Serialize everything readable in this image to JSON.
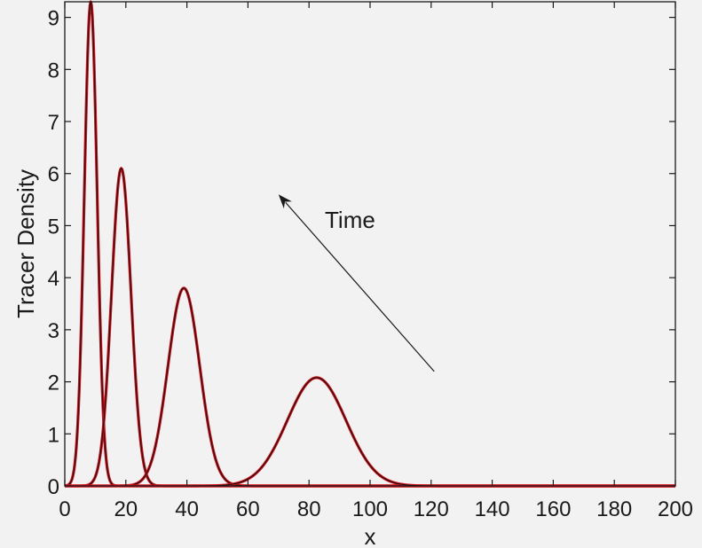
{
  "chart_data": {
    "type": "line",
    "title": "",
    "xlabel": "x",
    "ylabel": "Tracer Density",
    "xlim": [
      0,
      200
    ],
    "ylim": [
      0,
      9.3
    ],
    "xticks": [
      0,
      20,
      40,
      60,
      80,
      100,
      120,
      140,
      160,
      180,
      200
    ],
    "yticks": [
      0,
      1,
      2,
      3,
      4,
      5,
      6,
      7,
      8,
      9
    ],
    "grid": false,
    "legend": "none",
    "series": [
      {
        "peak_x": 8.5,
        "peak_y": 9.3,
        "sigma": 2.1
      },
      {
        "peak_x": 18.5,
        "peak_y": 6.1,
        "sigma": 3.2
      },
      {
        "peak_x": 39.0,
        "peak_y": 3.8,
        "sigma": 5.2
      },
      {
        "peak_x": 82.5,
        "peak_y": 2.08,
        "sigma": 9.6
      }
    ],
    "curve_colors": {
      "fit": "#d0101a",
      "data": "#111111"
    },
    "annotation": {
      "text": "Time",
      "arrow_from": [
        121,
        2.2
      ],
      "arrow_to": [
        70,
        5.6
      ]
    }
  }
}
